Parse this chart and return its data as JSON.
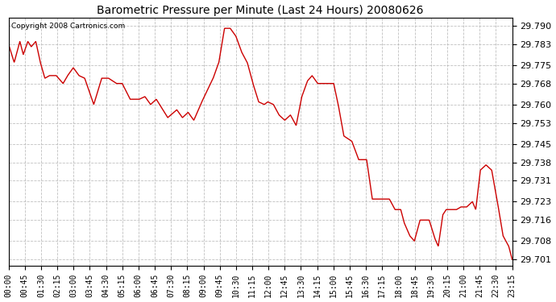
{
  "title": "Barometric Pressure per Minute (Last 24 Hours) 20080626",
  "copyright": "Copyright 2008 Cartronics.com",
  "line_color": "#cc0000",
  "bg_color": "#ffffff",
  "plot_bg_color": "#ffffff",
  "grid_color": "#b0b0b0",
  "yticks": [
    29.79,
    29.783,
    29.775,
    29.768,
    29.76,
    29.753,
    29.745,
    29.738,
    29.731,
    29.723,
    29.716,
    29.708,
    29.701
  ],
  "ylim": [
    29.6985,
    29.793
  ],
  "xtick_labels": [
    "00:00",
    "00:45",
    "01:30",
    "02:15",
    "03:00",
    "03:45",
    "04:30",
    "05:15",
    "06:00",
    "06:45",
    "07:30",
    "08:15",
    "09:00",
    "09:45",
    "10:30",
    "11:15",
    "12:00",
    "12:45",
    "13:30",
    "14:15",
    "15:00",
    "15:45",
    "16:30",
    "17:15",
    "18:00",
    "18:45",
    "19:30",
    "20:15",
    "21:00",
    "21:45",
    "22:30",
    "23:15"
  ],
  "keypoints": [
    [
      0,
      29.783
    ],
    [
      5,
      29.776
    ],
    [
      10,
      29.784
    ],
    [
      13,
      29.779
    ],
    [
      17,
      29.784
    ],
    [
      20,
      29.782
    ],
    [
      24,
      29.784
    ],
    [
      28,
      29.776
    ],
    [
      32,
      29.77
    ],
    [
      36,
      29.771
    ],
    [
      42,
      29.771
    ],
    [
      48,
      29.768
    ],
    [
      52,
      29.771
    ],
    [
      57,
      29.774
    ],
    [
      62,
      29.771
    ],
    [
      67,
      29.77
    ],
    [
      75,
      29.76
    ],
    [
      82,
      29.77
    ],
    [
      88,
      29.77
    ],
    [
      95,
      29.768
    ],
    [
      100,
      29.768
    ],
    [
      107,
      29.762
    ],
    [
      115,
      29.762
    ],
    [
      120,
      29.763
    ],
    [
      125,
      29.76
    ],
    [
      130,
      29.762
    ],
    [
      140,
      29.755
    ],
    [
      148,
      29.758
    ],
    [
      153,
      29.755
    ],
    [
      158,
      29.757
    ],
    [
      163,
      29.754
    ],
    [
      170,
      29.761
    ],
    [
      180,
      29.77
    ],
    [
      185,
      29.776
    ],
    [
      190,
      29.789
    ],
    [
      195,
      29.789
    ],
    [
      200,
      29.786
    ],
    [
      205,
      29.78
    ],
    [
      210,
      29.776
    ],
    [
      215,
      29.768
    ],
    [
      220,
      29.761
    ],
    [
      225,
      29.76
    ],
    [
      228,
      29.761
    ],
    [
      233,
      29.76
    ],
    [
      238,
      29.756
    ],
    [
      243,
      29.754
    ],
    [
      248,
      29.756
    ],
    [
      253,
      29.752
    ],
    [
      258,
      29.763
    ],
    [
      263,
      29.769
    ],
    [
      267,
      29.771
    ],
    [
      272,
      29.768
    ],
    [
      278,
      29.768
    ],
    [
      282,
      29.768
    ],
    [
      286,
      29.768
    ],
    [
      290,
      29.76
    ],
    [
      295,
      29.748
    ],
    [
      302,
      29.746
    ],
    [
      308,
      29.739
    ],
    [
      315,
      29.739
    ],
    [
      320,
      29.724
    ],
    [
      325,
      29.724
    ],
    [
      330,
      29.724
    ],
    [
      335,
      29.724
    ],
    [
      340,
      29.72
    ],
    [
      345,
      29.72
    ],
    [
      348,
      29.715
    ],
    [
      353,
      29.71
    ],
    [
      357,
      29.708
    ],
    [
      362,
      29.716
    ],
    [
      367,
      29.716
    ],
    [
      370,
      29.716
    ],
    [
      375,
      29.709
    ],
    [
      378,
      29.706
    ],
    [
      382,
      29.718
    ],
    [
      385,
      29.72
    ],
    [
      390,
      29.72
    ],
    [
      394,
      29.72
    ],
    [
      398,
      29.721
    ],
    [
      403,
      29.721
    ],
    [
      408,
      29.723
    ],
    [
      411,
      29.72
    ],
    [
      415,
      29.735
    ],
    [
      420,
      29.737
    ],
    [
      425,
      29.735
    ],
    [
      430,
      29.723
    ],
    [
      435,
      29.71
    ],
    [
      440,
      29.706
    ],
    [
      443,
      29.701
    ]
  ]
}
